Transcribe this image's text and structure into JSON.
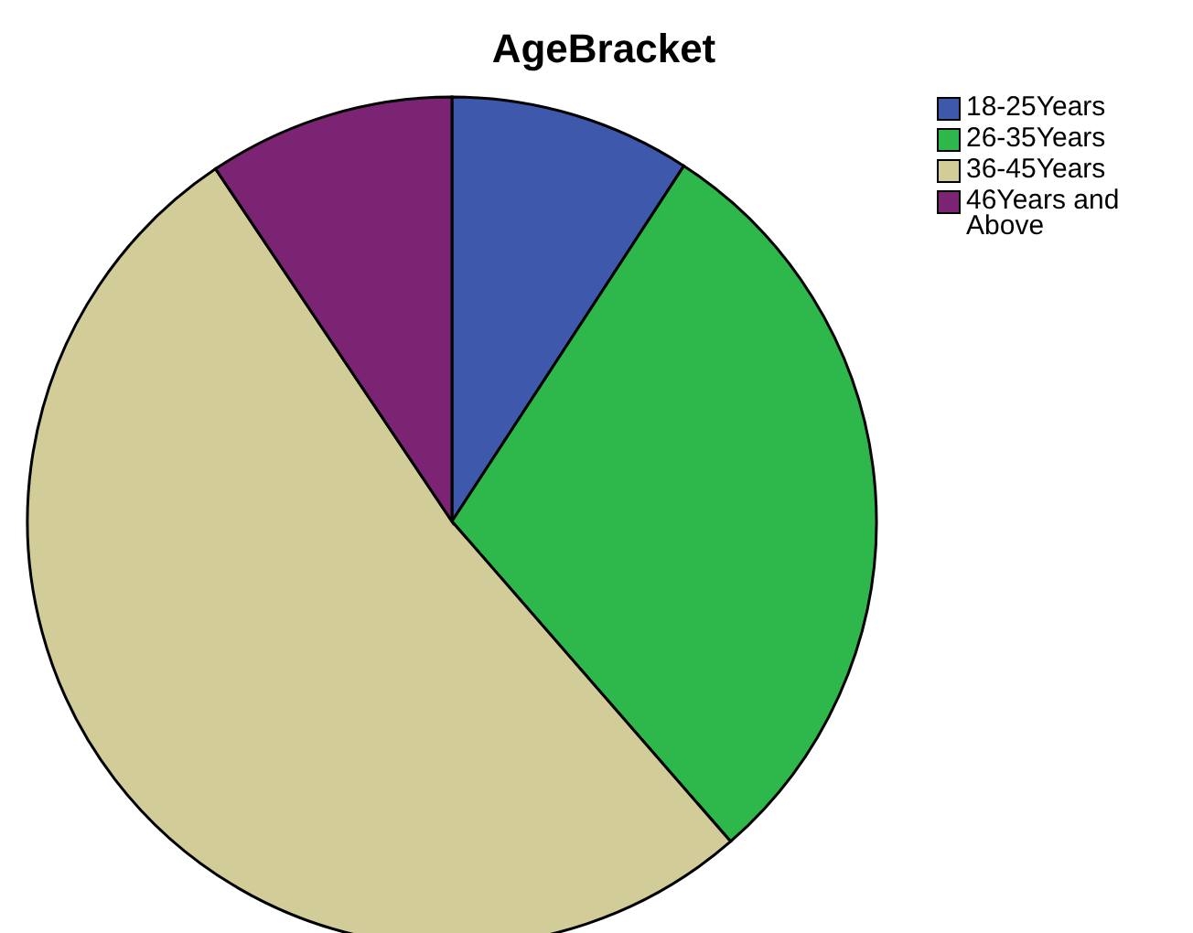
{
  "chart_data": {
    "type": "pie",
    "title": "AgeBracket",
    "categories": [
      "18-25Years",
      "26-35Years",
      "36-45Years",
      "46Years and Above"
    ],
    "values": [
      9.2,
      29.4,
      52.0,
      9.4
    ],
    "colors": [
      "#3e58ac",
      "#2eb84b",
      "#d2cc98",
      "#7b2474"
    ],
    "legend": "top right"
  }
}
